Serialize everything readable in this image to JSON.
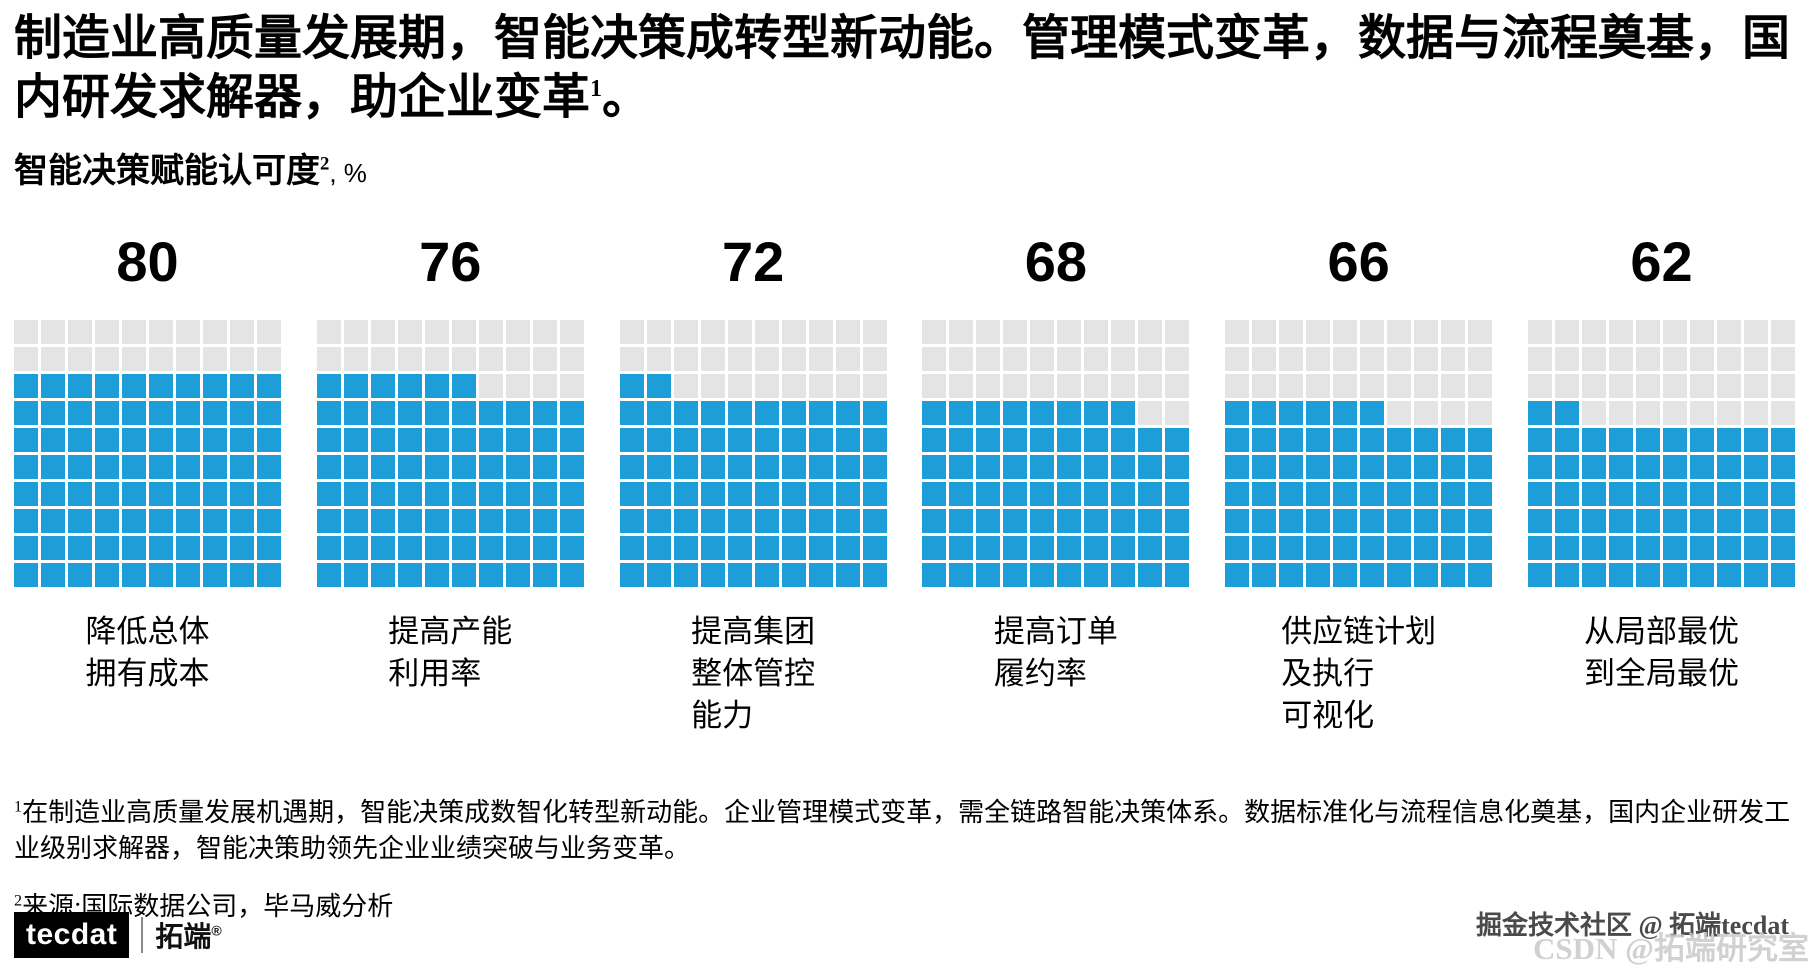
{
  "header": {
    "title_text": "制造业高质量发展期，智能决策成转型新动能。管理模式变革，数据与流程奠基，国内研发求解器，助企业变革",
    "title_sup": "1",
    "title_end": "。",
    "subtitle_text": "智能决策赋能认可度",
    "subtitle_sup": "2",
    "subtitle_unit": ", %"
  },
  "chart_data": {
    "type": "bar",
    "subtype": "waffle-grid-10x10",
    "title": "智能决策赋能认可度, %",
    "unit": "%",
    "categories": [
      "降低总体\n拥有成本",
      "提高产能\n利用率",
      "提高集团\n整体管控\n能力",
      "提高订单\n履约率",
      "供应链计划\n及执行\n可视化",
      "从局部最优\n到全局最优"
    ],
    "values": [
      80,
      76,
      72,
      68,
      66,
      62
    ],
    "ylim": [
      0,
      100
    ],
    "grid": {
      "rows": 10,
      "cols": 10,
      "cell_value": 1,
      "fill_order": "bottom-to-top, left-to-right"
    },
    "colors": {
      "filled": "#1E9ED9",
      "empty": "#E4E4E4"
    },
    "legend": "none"
  },
  "footnotes": [
    {
      "sup": "1",
      "text": "在制造业高质量发展机遇期，智能决策成数智化转型新动能。企业管理模式变革，需全链路智能决策体系。数据标准化与流程信息化奠基，国内企业研发工业级别求解器，智能决策助领先企业业绩突破与业务变革。"
    },
    {
      "sup": "2",
      "text": "来源:国际数据公司，毕马威分析"
    }
  ],
  "footer": {
    "logo_text": "tecdat",
    "logo_cn": "拓端",
    "logo_reg": "®",
    "watermark_primary": "掘金技术社区 @ 拓端tecdat",
    "watermark_secondary": "CSDN @拓端研究室"
  }
}
